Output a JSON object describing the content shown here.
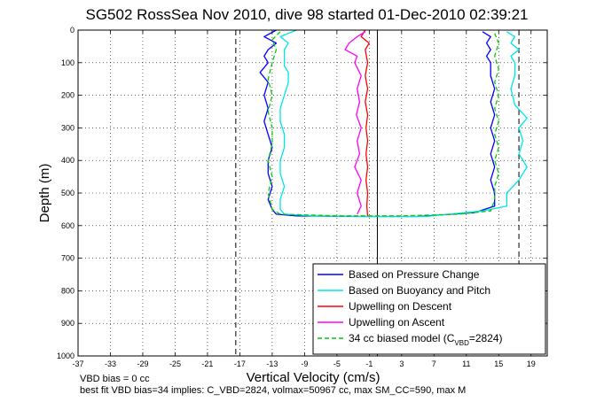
{
  "chart_data": {
    "type": "line",
    "title": "SG502 RossSea Nov 2010, dive 98 started 01-Dec-2010 02:39:21",
    "xlabel": "Vertical Velocity (cm/s)",
    "ylabel": "Depth (m)",
    "xlim": [
      -37,
      21
    ],
    "ylim": [
      1000,
      0
    ],
    "x_reversed": false,
    "y_reversed": true,
    "grid": true,
    "xticks": [
      "-37",
      "-33",
      "-29",
      "-25",
      "-21",
      "-17",
      "-13",
      "-9",
      "-5",
      "-1",
      "3",
      "7",
      "11",
      "15",
      "19"
    ],
    "yticks": [
      "0",
      "100",
      "200",
      "300",
      "400",
      "500",
      "600",
      "700",
      "800",
      "900",
      "1000"
    ],
    "reference_lines": {
      "solid_x": 0,
      "dashed_x": [
        -17.5,
        17.5
      ]
    },
    "legend_position": "bottom-right",
    "series": [
      {
        "name": "Based on Pressure Change",
        "color": "#0000ff",
        "style": "solid",
        "points": [
          [
            -12.5,
            0
          ],
          [
            -14,
            20
          ],
          [
            -12.5,
            40
          ],
          [
            -13.5,
            60
          ],
          [
            -14,
            80
          ],
          [
            -13.5,
            100
          ],
          [
            -14,
            115
          ],
          [
            -14.5,
            130
          ],
          [
            -13.5,
            160
          ],
          [
            -14,
            200
          ],
          [
            -13.5,
            240
          ],
          [
            -14,
            280
          ],
          [
            -13.5,
            320
          ],
          [
            -13,
            360
          ],
          [
            -13.5,
            400
          ],
          [
            -13.5,
            440
          ],
          [
            -13,
            480
          ],
          [
            -13.5,
            520
          ],
          [
            -13,
            550
          ],
          [
            -12.5,
            565
          ],
          [
            -10,
            570
          ],
          [
            -2,
            572
          ],
          [
            5,
            572
          ],
          [
            12,
            560
          ],
          [
            14.5,
            540
          ],
          [
            14.5,
            500
          ],
          [
            14,
            460
          ],
          [
            14.5,
            420
          ],
          [
            14,
            380
          ],
          [
            14.5,
            340
          ],
          [
            14,
            300
          ],
          [
            14.5,
            260
          ],
          [
            14,
            220
          ],
          [
            14.5,
            180
          ],
          [
            14,
            140
          ],
          [
            14,
            100
          ],
          [
            13.5,
            80
          ],
          [
            14,
            60
          ],
          [
            13.5,
            40
          ],
          [
            14,
            20
          ],
          [
            13,
            5
          ]
        ]
      },
      {
        "name": "Based on Buoyancy and Pitch",
        "color": "#00e5e5",
        "style": "solid",
        "points": [
          [
            -10,
            0
          ],
          [
            -12,
            20
          ],
          [
            -11,
            40
          ],
          [
            -11.5,
            60
          ],
          [
            -11.5,
            90
          ],
          [
            -11.5,
            110
          ],
          [
            -11,
            130
          ],
          [
            -11,
            160
          ],
          [
            -11.5,
            200
          ],
          [
            -12,
            240
          ],
          [
            -12,
            280
          ],
          [
            -11.5,
            320
          ],
          [
            -11.5,
            360
          ],
          [
            -12,
            400
          ],
          [
            -12,
            440
          ],
          [
            -11.5,
            480
          ],
          [
            -12,
            520
          ],
          [
            -12,
            550
          ],
          [
            -11.5,
            565
          ],
          [
            -8,
            570
          ],
          [
            -1,
            572
          ],
          [
            6,
            572
          ],
          [
            13,
            555
          ],
          [
            16,
            540
          ],
          [
            16,
            500
          ],
          [
            17.5,
            460
          ],
          [
            18.5,
            420
          ],
          [
            17.5,
            380
          ],
          [
            18,
            340
          ],
          [
            17.5,
            300
          ],
          [
            18.5,
            270
          ],
          [
            17,
            230
          ],
          [
            16.5,
            180
          ],
          [
            17,
            140
          ],
          [
            17,
            100
          ],
          [
            16.5,
            80
          ],
          [
            17.5,
            60
          ],
          [
            16.5,
            40
          ],
          [
            17,
            20
          ],
          [
            16,
            5
          ]
        ]
      },
      {
        "name": "Upwelling on Descent",
        "color": "#ff0000",
        "style": "solid",
        "points": [
          [
            -1.5,
            0
          ],
          [
            -2,
            20
          ],
          [
            -1,
            40
          ],
          [
            -1.5,
            60
          ],
          [
            -1.2,
            100
          ],
          [
            -1.5,
            140
          ],
          [
            -1.2,
            180
          ],
          [
            -1.5,
            220
          ],
          [
            -1.2,
            260
          ],
          [
            -1.4,
            300
          ],
          [
            -1.2,
            340
          ],
          [
            -1.4,
            380
          ],
          [
            -1.2,
            420
          ],
          [
            -1.4,
            460
          ],
          [
            -1.2,
            500
          ],
          [
            -1.3,
            540
          ],
          [
            -1.2,
            570
          ]
        ]
      },
      {
        "name": "Upwelling on Ascent",
        "color": "#ff00ff",
        "style": "solid",
        "points": [
          [
            -2.5,
            565
          ],
          [
            -2,
            540
          ],
          [
            -2.5,
            500
          ],
          [
            -2,
            460
          ],
          [
            -2.8,
            420
          ],
          [
            -2.2,
            380
          ],
          [
            -2.5,
            340
          ],
          [
            -2,
            300
          ],
          [
            -2.6,
            260
          ],
          [
            -2.2,
            220
          ],
          [
            -2.5,
            180
          ],
          [
            -2,
            140
          ],
          [
            -2.8,
            100
          ],
          [
            -2.5,
            80
          ],
          [
            -4,
            60
          ],
          [
            -3.5,
            40
          ],
          [
            -2.5,
            20
          ],
          [
            -1.5,
            5
          ]
        ]
      },
      {
        "name": "34 cc biased model (C",
        "name_subscript": "VBD",
        "name_suffix": "=2824)",
        "color": "#00cc00",
        "style": "dashed",
        "points": [
          [
            -12,
            5
          ],
          [
            -13,
            30
          ],
          [
            -12.5,
            60
          ],
          [
            -13,
            100
          ],
          [
            -13.5,
            150
          ],
          [
            -13,
            200
          ],
          [
            -13.5,
            250
          ],
          [
            -13,
            300
          ],
          [
            -13,
            350
          ],
          [
            -13.5,
            400
          ],
          [
            -13,
            450
          ],
          [
            -13.5,
            500
          ],
          [
            -13,
            550
          ],
          [
            -12,
            565
          ],
          [
            -5,
            570
          ],
          [
            3,
            570
          ],
          [
            10,
            565
          ],
          [
            14,
            555
          ],
          [
            14.5,
            520
          ],
          [
            14.5,
            480
          ],
          [
            15,
            440
          ],
          [
            14.5,
            400
          ],
          [
            15,
            360
          ],
          [
            14.5,
            320
          ],
          [
            15,
            280
          ],
          [
            14.5,
            240
          ],
          [
            15,
            200
          ],
          [
            14.5,
            160
          ],
          [
            15,
            120
          ],
          [
            14.5,
            80
          ],
          [
            15,
            40
          ],
          [
            14.5,
            10
          ]
        ]
      }
    ],
    "footer_lines": [
      "VBD bias = 0 cc",
      "best fit VBD bias=34 implies: C_VBD=2824, volmax=50967 cc, max SM_CC=590, max M"
    ]
  }
}
